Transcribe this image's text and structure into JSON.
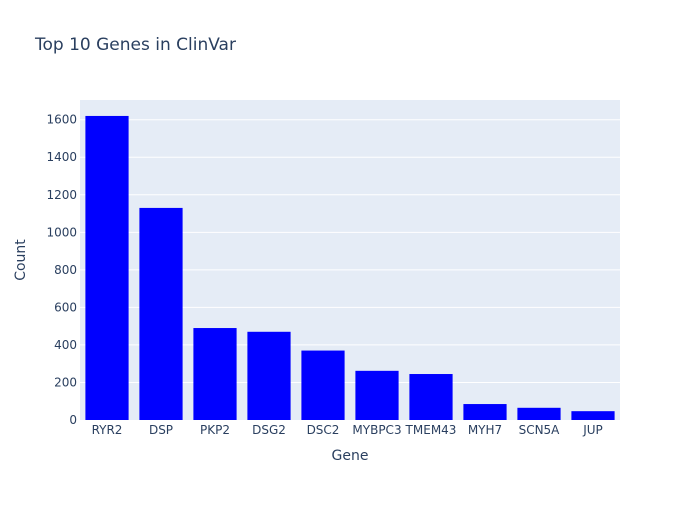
{
  "chart_data": {
    "type": "bar",
    "title": "Top 10 Genes in ClinVar",
    "xlabel": "Gene",
    "ylabel": "Count",
    "categories": [
      "RYR2",
      "DSP",
      "PKP2",
      "DSG2",
      "DSC2",
      "MYBPC3",
      "TMEM43",
      "MYH7",
      "SCN5A",
      "JUP"
    ],
    "values": [
      1620,
      1130,
      490,
      470,
      370,
      262,
      245,
      85,
      65,
      47
    ],
    "ylim": [
      0,
      1705
    ],
    "yticks": [
      0,
      200,
      400,
      600,
      800,
      1000,
      1200,
      1400,
      1600
    ],
    "grid": true,
    "bar_color": "#0000ff",
    "plot_bg": "#e5ecf6",
    "text_color": "#2a3f5f"
  }
}
